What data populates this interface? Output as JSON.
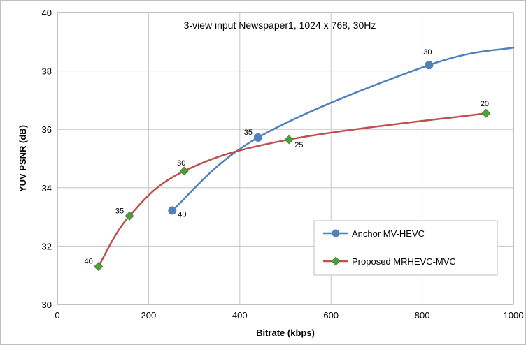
{
  "chart_data": {
    "type": "line",
    "title": "3-view input Newspaper1, 1024 x 768, 30Hz",
    "xlabel": "Bitrate (kbps)",
    "ylabel": "YUV PSNR (dB)",
    "xlim": [
      0,
      1000
    ],
    "ylim": [
      30,
      40
    ],
    "xticks": [
      0,
      200,
      400,
      600,
      800,
      1000
    ],
    "yticks": [
      30,
      32,
      34,
      36,
      38,
      40
    ],
    "grid": true,
    "legend_position": "bottom-right",
    "series": [
      {
        "name": "Anchor MV-HEVC",
        "color": "#4f81bd",
        "marker": "circle",
        "points": [
          {
            "x": 252,
            "y": 33.22,
            "label": "40"
          },
          {
            "x": 440,
            "y": 35.72,
            "label": "35"
          },
          {
            "x": 815,
            "y": 38.2,
            "label": "30"
          },
          {
            "x": 1000,
            "y": 38.8,
            "label": ""
          }
        ]
      },
      {
        "name": "Proposed MRHEVC-MVC",
        "color": "#c0504d",
        "marker_color": "#4aa03c",
        "marker": "diamond",
        "points": [
          {
            "x": 90,
            "y": 31.3,
            "label": "40"
          },
          {
            "x": 158,
            "y": 33.03,
            "label": "35"
          },
          {
            "x": 278,
            "y": 34.57,
            "label": "30"
          },
          {
            "x": 508,
            "y": 35.65,
            "label": "25"
          },
          {
            "x": 940,
            "y": 36.55,
            "label": "20"
          }
        ]
      }
    ]
  }
}
